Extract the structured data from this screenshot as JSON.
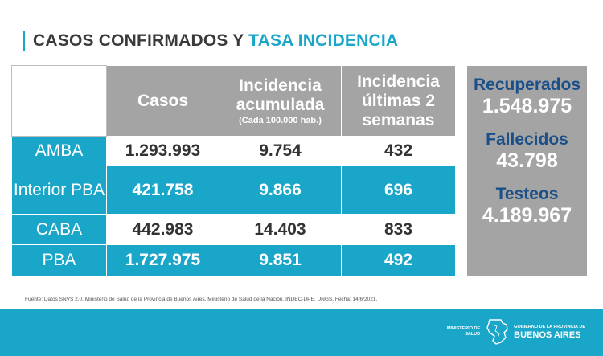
{
  "title": {
    "part1": "CASOS CONFIRMADOS Y",
    "part2": "TASA INCIDENCIA"
  },
  "table": {
    "headers": {
      "casos": "Casos",
      "incidencia_acumulada": "Incidencia acumulada",
      "incidencia_acumulada_sub": "(Cada 100.000 hab.)",
      "incidencia_ultimas": "Incidencia últimas 2 semanas"
    },
    "rows": [
      {
        "label": "AMBA",
        "casos": "1.293.993",
        "acumulada": "9.754",
        "ultimas": "432"
      },
      {
        "label": "Interior PBA",
        "casos": "421.758",
        "acumulada": "9.866",
        "ultimas": "696"
      },
      {
        "label": "CABA",
        "casos": "442.983",
        "acumulada": "14.403",
        "ultimas": "833"
      },
      {
        "label": "PBA",
        "casos": "1.727.975",
        "acumulada": "9.851",
        "ultimas": "492"
      }
    ]
  },
  "summary": {
    "recuperados_label": "Recuperados",
    "recuperados_value": "1.548.975",
    "fallecidos_label": "Fallecidos",
    "fallecidos_value": "43.798",
    "testeos_label": "Testeos",
    "testeos_value": "4.189.967"
  },
  "source": "Fuente: Datos SNVS 2.0. Ministerio de Salud de la Provincia de Buenos Aires, Ministerio de Salud de la Nación, INDEC-DPE, UNGS. Fecha: 14/6/2021.",
  "footer": {
    "ministerio": "MINISTERIO DE SALUD",
    "gobierno": "GOBIERNO DE LA PROVINCIA DE",
    "provincia": "BUENOS AIRES"
  },
  "colors": {
    "accent": "#1aa6c8",
    "gray": "#a4a4a4",
    "navy": "#1a4f8a"
  }
}
